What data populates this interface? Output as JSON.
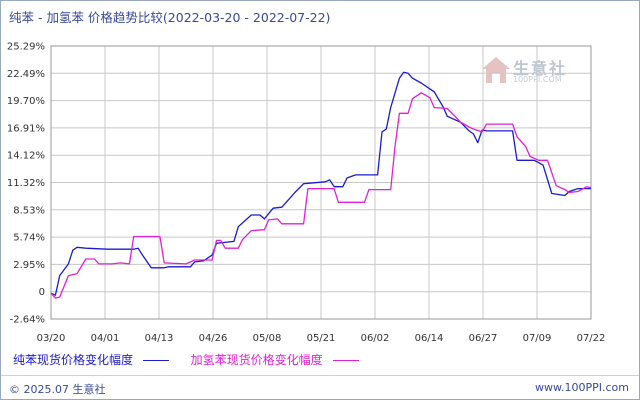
{
  "title": "纯苯 - 加氢苯 价格趋势比较(2022-03-20 - 2022-07-22)",
  "watermark": {
    "text": "生意社",
    "sub": "100PPI.COM"
  },
  "footer": {
    "copyright": "© 2025.07 生意社",
    "url": "www.100PPI.com"
  },
  "chart_data": {
    "type": "line",
    "title": "纯苯 - 加氢苯 价格趋势比较(2022-03-20 - 2022-07-22)",
    "x_ticks": [
      "03/20",
      "04/01",
      "04/13",
      "04/26",
      "05/08",
      "05/21",
      "06/02",
      "06/14",
      "06/27",
      "07/09",
      "07/22"
    ],
    "y_ticks": [
      "25.29%",
      "22.49%",
      "19.70%",
      "16.91%",
      "14.12%",
      "11.32%",
      "8.53%",
      "5.74%",
      "2.95%",
      "0",
      "-2.64%"
    ],
    "ylim": [
      -2.64,
      25.29
    ],
    "xlim": [
      "2022-03-20",
      "2022-07-22"
    ],
    "grid": true,
    "legend_position": "bottom",
    "colors": {
      "series1": "#1b1bd0",
      "series2": "#e020d8",
      "grid": "#c8c8c8"
    },
    "series": [
      {
        "name": "纯苯现货价格变化幅度",
        "points": [
          [
            "2022-03-20",
            0
          ],
          [
            "2022-03-21",
            -0.2
          ],
          [
            "2022-03-22",
            1.8
          ],
          [
            "2022-03-24",
            3.0
          ],
          [
            "2022-03-25",
            4.4
          ],
          [
            "2022-03-26",
            4.7
          ],
          [
            "2022-03-28",
            4.6
          ],
          [
            "2022-04-02",
            4.5
          ],
          [
            "2022-04-08",
            4.5
          ],
          [
            "2022-04-09",
            4.6
          ],
          [
            "2022-04-10",
            3.9
          ],
          [
            "2022-04-12",
            2.6
          ],
          [
            "2022-04-15",
            2.6
          ],
          [
            "2022-04-16",
            2.7
          ],
          [
            "2022-04-21",
            2.7
          ],
          [
            "2022-04-22",
            3.2
          ],
          [
            "2022-04-24",
            3.3
          ],
          [
            "2022-04-26",
            3.9
          ],
          [
            "2022-04-27",
            5.1
          ],
          [
            "2022-05-01",
            5.3
          ],
          [
            "2022-05-02",
            6.8
          ],
          [
            "2022-05-05",
            8.0
          ],
          [
            "2022-05-07",
            8.0
          ],
          [
            "2022-05-08",
            7.6
          ],
          [
            "2022-05-10",
            8.7
          ],
          [
            "2022-05-12",
            8.8
          ],
          [
            "2022-05-13",
            9.3
          ],
          [
            "2022-05-15",
            10.3
          ],
          [
            "2022-05-17",
            11.2
          ],
          [
            "2022-05-22",
            11.4
          ],
          [
            "2022-05-23",
            11.6
          ],
          [
            "2022-05-24",
            10.9
          ],
          [
            "2022-05-26",
            10.9
          ],
          [
            "2022-05-27",
            11.8
          ],
          [
            "2022-05-29",
            12.1
          ],
          [
            "2022-06-03",
            12.1
          ],
          [
            "2022-06-04",
            16.5
          ],
          [
            "2022-06-05",
            16.8
          ],
          [
            "2022-06-06",
            19.0
          ],
          [
            "2022-06-08",
            22.0
          ],
          [
            "2022-06-09",
            22.6
          ],
          [
            "2022-06-10",
            22.5
          ],
          [
            "2022-06-11",
            22.0
          ],
          [
            "2022-06-13",
            21.5
          ],
          [
            "2022-06-15",
            20.9
          ],
          [
            "2022-06-16",
            20.6
          ],
          [
            "2022-06-18",
            19.1
          ],
          [
            "2022-06-19",
            18.1
          ],
          [
            "2022-06-22",
            17.5
          ],
          [
            "2022-06-24",
            16.6
          ],
          [
            "2022-06-25",
            16.3
          ],
          [
            "2022-06-26",
            15.4
          ],
          [
            "2022-06-27",
            16.7
          ],
          [
            "2022-06-28",
            16.6
          ],
          [
            "2022-07-04",
            16.6
          ],
          [
            "2022-07-05",
            13.6
          ],
          [
            "2022-07-09",
            13.6
          ],
          [
            "2022-07-11",
            13.1
          ],
          [
            "2022-07-13",
            10.2
          ],
          [
            "2022-07-16",
            10.0
          ],
          [
            "2022-07-17",
            10.4
          ],
          [
            "2022-07-19",
            10.7
          ],
          [
            "2022-07-22",
            10.7
          ]
        ]
      },
      {
        "name": "加氢苯现货价格变化幅度",
        "points": [
          [
            "2022-03-20",
            0
          ],
          [
            "2022-03-21",
            -0.5
          ],
          [
            "2022-03-22",
            -0.4
          ],
          [
            "2022-03-24",
            1.8
          ],
          [
            "2022-03-26",
            2.0
          ],
          [
            "2022-03-28",
            3.5
          ],
          [
            "2022-03-30",
            3.5
          ],
          [
            "2022-03-31",
            3.0
          ],
          [
            "2022-04-03",
            3.0
          ],
          [
            "2022-04-05",
            3.1
          ],
          [
            "2022-04-07",
            3.0
          ],
          [
            "2022-04-08",
            5.8
          ],
          [
            "2022-04-14",
            5.8
          ],
          [
            "2022-04-15",
            3.1
          ],
          [
            "2022-04-20",
            3.0
          ],
          [
            "2022-04-22",
            3.4
          ],
          [
            "2022-04-26",
            3.4
          ],
          [
            "2022-04-27",
            5.4
          ],
          [
            "2022-04-28",
            5.4
          ],
          [
            "2022-04-29",
            4.6
          ],
          [
            "2022-05-02",
            4.6
          ],
          [
            "2022-05-03",
            5.5
          ],
          [
            "2022-05-05",
            6.4
          ],
          [
            "2022-05-08",
            6.5
          ],
          [
            "2022-05-09",
            7.5
          ],
          [
            "2022-05-11",
            7.6
          ],
          [
            "2022-05-12",
            7.1
          ],
          [
            "2022-05-17",
            7.1
          ],
          [
            "2022-05-18",
            10.7
          ],
          [
            "2022-05-24",
            10.7
          ],
          [
            "2022-05-25",
            9.3
          ],
          [
            "2022-05-31",
            9.3
          ],
          [
            "2022-06-01",
            10.6
          ],
          [
            "2022-06-06",
            10.6
          ],
          [
            "2022-06-07",
            15.0
          ],
          [
            "2022-06-08",
            18.4
          ],
          [
            "2022-06-10",
            18.4
          ],
          [
            "2022-06-11",
            19.9
          ],
          [
            "2022-06-13",
            20.5
          ],
          [
            "2022-06-15",
            20.0
          ],
          [
            "2022-06-16",
            19.0
          ],
          [
            "2022-06-19",
            18.9
          ],
          [
            "2022-06-21",
            18.0
          ],
          [
            "2022-06-22",
            17.5
          ],
          [
            "2022-06-24",
            17.0
          ],
          [
            "2022-06-25",
            16.8
          ],
          [
            "2022-06-27",
            16.5
          ],
          [
            "2022-06-28",
            17.3
          ],
          [
            "2022-07-04",
            17.3
          ],
          [
            "2022-07-05",
            16.0
          ],
          [
            "2022-07-07",
            15.0
          ],
          [
            "2022-07-08",
            14.0
          ],
          [
            "2022-07-10",
            13.6
          ],
          [
            "2022-07-12",
            13.6
          ],
          [
            "2022-07-14",
            11.0
          ],
          [
            "2022-07-16",
            10.6
          ],
          [
            "2022-07-17",
            10.3
          ],
          [
            "2022-07-19",
            10.4
          ],
          [
            "2022-07-21",
            10.9
          ],
          [
            "2022-07-22",
            10.8
          ]
        ]
      }
    ]
  }
}
